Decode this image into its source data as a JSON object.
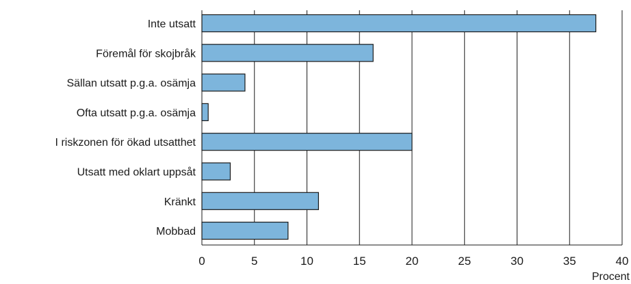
{
  "chart_data": {
    "type": "bar",
    "orientation": "horizontal",
    "categories": [
      "Inte utsatt",
      "Föremål för skojbråk",
      "Sällan utsatt p.g.a. osämja",
      "Ofta utsatt p.g.a. osämja",
      "I riskzonen för ökad utsatthet",
      "Utsatt med oklart uppsåt",
      "Kränkt",
      "Mobbad"
    ],
    "values": [
      37.5,
      16.3,
      4.1,
      0.6,
      20.0,
      2.7,
      11.1,
      8.2
    ],
    "xlabel": "Procent",
    "xlim": [
      0,
      40
    ],
    "xticks": [
      "0",
      "5",
      "10",
      "15",
      "20",
      "25",
      "30",
      "35",
      "40"
    ],
    "grid": true,
    "bar_color": "#7db5dc",
    "legend": null
  }
}
